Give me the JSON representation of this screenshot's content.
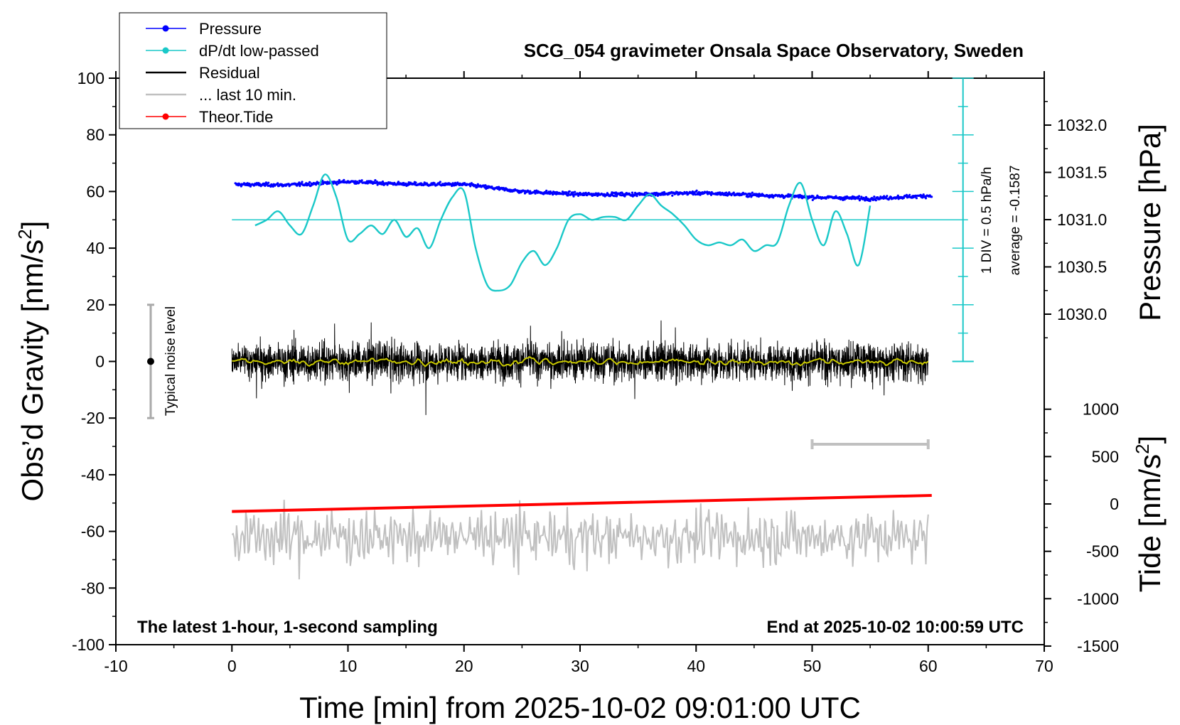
{
  "chart_data": {
    "type": "line",
    "title": "SCG_054 gravimeter Onsala Space Observatory, Sweden",
    "xlabel": "Time [min] from 2025-10-02 09:01:00 UTC",
    "ylabel_left_prefix": "Obs’d Gravity [nm/s",
    "ylabel_left_sup": "2",
    "ylabel_left_suffix": "]",
    "ylabel_right_pressure": "Pressure [hPa]",
    "ylabel_right_tide_prefix": "Tide [nm/s",
    "ylabel_right_tide_sup": "2",
    "ylabel_right_tide_suffix": "]",
    "xlim": [
      -10,
      70
    ],
    "ylim": [
      -100,
      100
    ],
    "x_ticks": [
      "-10",
      "0",
      "10",
      "20",
      "30",
      "40",
      "50",
      "60",
      "70"
    ],
    "y_ticks": [
      "-100",
      "-80",
      "-60",
      "-40",
      "-20",
      "0",
      "20",
      "40",
      "60",
      "80",
      "100"
    ],
    "pressure_ticks": [
      "1030.0",
      "1030.5",
      "1031.0",
      "1031.5",
      "1032.0"
    ],
    "tide_ticks": [
      "-1500",
      "-1000",
      "-500",
      "0",
      "500",
      "1000"
    ],
    "bottom_left_note": "The latest 1-hour, 1-second sampling",
    "bottom_right_note": "End at 2025-10-02 10:00:59 UTC",
    "noise_label": "Typical noise level",
    "noise_level": {
      "x": -7,
      "center": 0,
      "range": [
        -20,
        20
      ]
    },
    "scale_label_1": "1 DIV = 0.5 hPa/h",
    "scale_label_2": "average = -0.1587",
    "dpdt_baseline_gravity_units": 50,
    "last10_bar_minutes": [
      50,
      60
    ],
    "colors": {
      "pressure": "#0000ff",
      "dpdt": "#1ac8c8",
      "residual": "#000000",
      "smoothed": "#c8c800",
      "last10": "#c0c0c0",
      "tide": "#ff0000"
    },
    "legend": [
      {
        "label": "Pressure",
        "color": "#0000ff",
        "marker": true
      },
      {
        "label": "dP/dt low-passed",
        "color": "#1ac8c8",
        "marker": true
      },
      {
        "label": "Residual",
        "color": "#000000",
        "marker": false
      },
      {
        "label": "... last 10 min.",
        "color": "#c0c0c0",
        "marker": false
      },
      {
        "label": "Theor.Tide",
        "color": "#ff0000",
        "marker": true
      }
    ],
    "series": [
      {
        "name": "Pressure",
        "axis": "gravity_units",
        "x": [
          0,
          5,
          10,
          15,
          20,
          25,
          30,
          35,
          40,
          45,
          50,
          55,
          60
        ],
        "values": [
          62.5,
          62.3,
          63.5,
          62.6,
          62.5,
          60.0,
          59.0,
          59.0,
          59.5,
          58.8,
          58.0,
          57.5,
          58.5
        ]
      },
      {
        "name": "dP/dt low-passed",
        "axis": "gravity_units",
        "x": [
          2,
          3,
          4,
          5,
          6,
          7,
          8,
          9,
          10,
          11,
          12,
          13,
          14,
          15,
          16,
          17,
          18,
          19,
          20,
          21,
          22,
          23,
          24,
          25,
          26,
          27,
          28,
          29,
          30,
          31,
          32,
          33,
          34,
          35,
          36,
          37,
          38,
          39,
          40,
          41,
          42,
          43,
          44,
          45,
          46,
          47,
          48,
          49,
          50,
          51,
          52,
          53,
          54,
          55
        ],
        "values": [
          48,
          50,
          53,
          48,
          45,
          55,
          66,
          58,
          43,
          45,
          48,
          45,
          50,
          44,
          47,
          40,
          50,
          58,
          60,
          40,
          27,
          25,
          27,
          35,
          39,
          34,
          40,
          50,
          52,
          50,
          51,
          51,
          50,
          55,
          59,
          55,
          52,
          48,
          43,
          41,
          42,
          41,
          43,
          39,
          41,
          42,
          55,
          63,
          50,
          41,
          53,
          45,
          34,
          55
        ]
      },
      {
        "name": "Theor.Tide",
        "axis": "tide",
        "x": [
          0,
          60
        ],
        "values": [
          -80,
          90
        ]
      }
    ]
  }
}
